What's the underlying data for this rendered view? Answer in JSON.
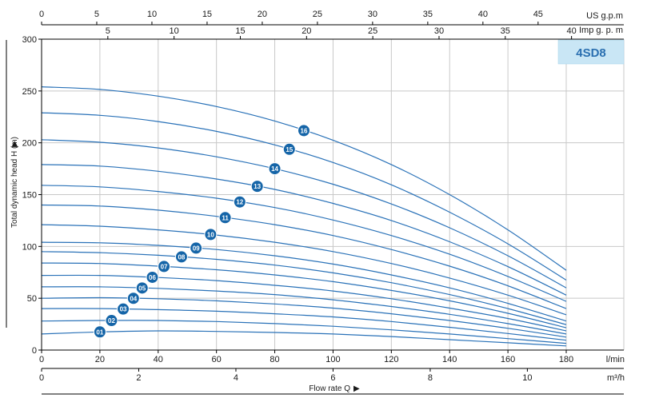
{
  "chart_data": {
    "type": "line",
    "model": "4SD8",
    "ylabel": "Total dynamic head H (m)",
    "xlabel": "Flow rate Q",
    "ylim": [
      0,
      300
    ],
    "yticks": [
      0,
      50,
      100,
      150,
      200,
      250,
      300
    ],
    "colors": {
      "curve": "#2a72b8",
      "badge": "#1565a8",
      "grid": "#c8c8c8",
      "model_box": "#c9e6f5"
    },
    "axes": {
      "lmin": {
        "unit": "l/min",
        "range": [
          0,
          180
        ],
        "ticks": [
          0,
          20,
          40,
          60,
          80,
          100,
          120,
          140,
          160,
          180
        ]
      },
      "m3h": {
        "unit": "m³/h",
        "range": [
          0,
          10.8
        ],
        "ticks": [
          0,
          2,
          4,
          6,
          8,
          10
        ]
      },
      "usgpm": {
        "unit": "US g.p.m",
        "range": [
          0,
          47.55
        ],
        "ticks": [
          0,
          5,
          10,
          15,
          20,
          25,
          30,
          35,
          40,
          45
        ]
      },
      "impgpm": {
        "unit": "Imp g. p. m",
        "range": [
          0,
          39.6
        ],
        "ticks": [
          5,
          10,
          15,
          20,
          25,
          30,
          35,
          40
        ]
      }
    },
    "x": [
      0,
      20,
      40,
      60,
      80,
      100,
      120,
      140,
      160,
      180
    ],
    "series": [
      {
        "name": "01",
        "label_x": 20,
        "values": [
          15.5,
          17.5,
          18.5,
          18,
          17,
          15.5,
          13,
          10,
          7,
          4
        ]
      },
      {
        "name": "02",
        "label_x": 24,
        "values": [
          28,
          28.5,
          28.5,
          27.5,
          25.5,
          23,
          19.5,
          15.5,
          11,
          6.5
        ]
      },
      {
        "name": "03",
        "label_x": 28,
        "values": [
          40,
          40,
          39,
          37.5,
          35,
          32,
          27.5,
          22,
          16,
          9.5
        ]
      },
      {
        "name": "04",
        "label_x": 31.5,
        "values": [
          50,
          50.5,
          49.5,
          47.5,
          44.5,
          40.5,
          35,
          28.5,
          21,
          12.5
        ]
      },
      {
        "name": "05",
        "label_x": 34.5,
        "values": [
          61,
          61,
          59.5,
          57,
          53.5,
          48.5,
          42,
          34.5,
          25.5,
          15.5
        ]
      },
      {
        "name": "06",
        "label_x": 38,
        "values": [
          72,
          72,
          70,
          67,
          62.5,
          57,
          49.5,
          40.5,
          30.5,
          18.5
        ]
      },
      {
        "name": "07",
        "label_x": 42,
        "values": [
          84,
          83.5,
          81,
          77.5,
          72.5,
          66,
          57.5,
          47.5,
          35.5,
          21.5
        ]
      },
      {
        "name": "08",
        "label_x": 48,
        "values": [
          95,
          94,
          91.5,
          87.5,
          82,
          74.5,
          65,
          53.5,
          40,
          24.5
        ]
      },
      {
        "name": "09",
        "label_x": 53,
        "values": [
          104,
          103.5,
          101,
          97,
          91,
          83,
          72.5,
          60,
          45,
          28
        ]
      },
      {
        "name": "10",
        "label_x": 58,
        "values": [
          121,
          119.5,
          116,
          111,
          104,
          95,
          83.5,
          69.5,
          53,
          34
        ]
      },
      {
        "name": "11",
        "label_x": 63,
        "values": [
          140,
          139,
          135,
          129,
          121,
          110.5,
          97,
          81,
          62,
          40
        ]
      },
      {
        "name": "12",
        "label_x": 68,
        "values": [
          159,
          157.5,
          153,
          146.5,
          137.5,
          125.5,
          110.5,
          92.5,
          71,
          47
        ]
      },
      {
        "name": "13",
        "label_x": 74,
        "values": [
          179,
          177.5,
          172.5,
          165,
          155,
          141.5,
          125,
          104.5,
          80.5,
          53
        ]
      },
      {
        "name": "14",
        "label_x": 80,
        "values": [
          203,
          200.5,
          195,
          186.5,
          175,
          160,
          141,
          118,
          91,
          60
        ]
      },
      {
        "name": "15",
        "label_x": 85,
        "values": [
          229,
          226.5,
          220.5,
          211,
          198,
          181,
          159.5,
          133,
          102.5,
          67.5
        ]
      },
      {
        "name": "16",
        "label_x": 90,
        "values": [
          254,
          251.5,
          245,
          235,
          221,
          202.5,
          179,
          150,
          116,
          77
        ]
      }
    ]
  }
}
